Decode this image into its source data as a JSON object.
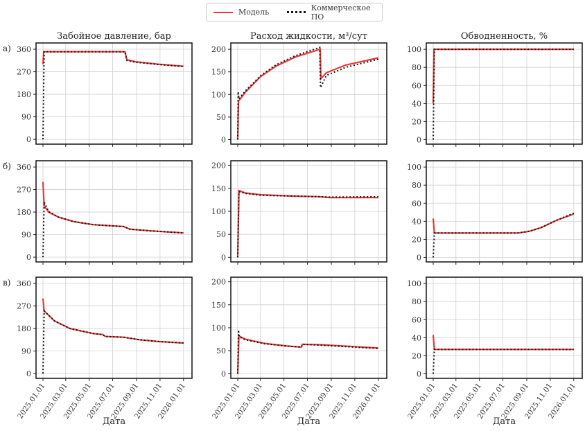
{
  "legend": {
    "model": "Модель",
    "commercial": "Коммерческое ПО"
  },
  "colors": {
    "model": "#e8393a",
    "commercial": "#111111"
  },
  "row_labels": [
    "а)",
    "б)",
    "в)"
  ],
  "xlabel": "Дата",
  "chart_data": {
    "type": "line",
    "layout": "3x3 grid",
    "grid": true,
    "legend_position": "top-center",
    "x_ticks": [
      "2025.01.01",
      "2025.03.01",
      "2025.05.01",
      "2025.07.01",
      "2025.09.01",
      "2025.11.01",
      "2026.01.01"
    ],
    "x_tick_days": [
      0,
      59,
      120,
      181,
      243,
      304,
      365
    ],
    "column_titles": [
      "Забойное давление, бар",
      "Расход жидкости, м³/сут",
      "Обводненность, %"
    ],
    "panels": [
      {
        "row": 0,
        "col": 0,
        "ylim": [
          -19,
          385
        ],
        "yticks": [
          0,
          90,
          180,
          270,
          360
        ],
        "model": [
          [
            0,
            300
          ],
          [
            2,
            350
          ],
          [
            213,
            350
          ],
          [
            218,
            318
          ],
          [
            240,
            310
          ],
          [
            300,
            300
          ],
          [
            365,
            292
          ]
        ],
        "commercial": [
          [
            0,
            0
          ],
          [
            3,
            350
          ],
          [
            213,
            350
          ],
          [
            218,
            315
          ],
          [
            240,
            308
          ],
          [
            300,
            299
          ],
          [
            365,
            291
          ]
        ]
      },
      {
        "row": 0,
        "col": 1,
        "ylim": [
          -10,
          214
        ],
        "yticks": [
          0,
          50,
          100,
          150,
          200
        ],
        "model": [
          [
            0,
            0
          ],
          [
            2,
            85
          ],
          [
            20,
            105
          ],
          [
            60,
            140
          ],
          [
            100,
            163
          ],
          [
            150,
            183
          ],
          [
            214,
            200
          ],
          [
            216,
            135
          ],
          [
            230,
            148
          ],
          [
            280,
            165
          ],
          [
            365,
            181
          ]
        ],
        "commercial": [
          [
            0,
            0
          ],
          [
            1,
            106
          ],
          [
            3,
            90
          ],
          [
            20,
            108
          ],
          [
            60,
            142
          ],
          [
            100,
            166
          ],
          [
            150,
            186
          ],
          [
            213,
            204
          ],
          [
            215,
            115
          ],
          [
            230,
            142
          ],
          [
            280,
            160
          ],
          [
            365,
            178
          ]
        ]
      },
      {
        "row": 0,
        "col": 2,
        "ylim": [
          -5,
          107
        ],
        "yticks": [
          0,
          20,
          40,
          60,
          80,
          100
        ],
        "model": [
          [
            0,
            40
          ],
          [
            2,
            100
          ],
          [
            365,
            100
          ]
        ],
        "commercial": [
          [
            0,
            0
          ],
          [
            3,
            100
          ],
          [
            365,
            100
          ]
        ]
      },
      {
        "row": 1,
        "col": 0,
        "ylim": [
          -19,
          385
        ],
        "yticks": [
          0,
          90,
          180,
          270,
          360
        ],
        "model": [
          [
            0,
            300
          ],
          [
            3,
            205
          ],
          [
            15,
            180
          ],
          [
            40,
            160
          ],
          [
            80,
            142
          ],
          [
            130,
            130
          ],
          [
            210,
            122
          ],
          [
            225,
            112
          ],
          [
            280,
            105
          ],
          [
            365,
            97
          ]
        ],
        "commercial": [
          [
            0,
            0
          ],
          [
            3,
            220
          ],
          [
            15,
            182
          ],
          [
            40,
            160
          ],
          [
            80,
            142
          ],
          [
            130,
            130
          ],
          [
            210,
            122
          ],
          [
            225,
            112
          ],
          [
            280,
            105
          ],
          [
            365,
            97
          ]
        ]
      },
      {
        "row": 1,
        "col": 1,
        "ylim": [
          -10,
          210
        ],
        "yticks": [
          0,
          50,
          100,
          150,
          200
        ],
        "model": [
          [
            0,
            0
          ],
          [
            3,
            145
          ],
          [
            20,
            140
          ],
          [
            60,
            136
          ],
          [
            150,
            133
          ],
          [
            210,
            132
          ],
          [
            240,
            130
          ],
          [
            365,
            130
          ]
        ],
        "commercial": [
          [
            0,
            0
          ],
          [
            3,
            143
          ],
          [
            20,
            139
          ],
          [
            60,
            135
          ],
          [
            150,
            133
          ],
          [
            210,
            132
          ],
          [
            240,
            131
          ],
          [
            365,
            132
          ]
        ]
      },
      {
        "row": 1,
        "col": 2,
        "ylim": [
          -5,
          107
        ],
        "yticks": [
          0,
          20,
          40,
          60,
          80,
          100
        ],
        "model": [
          [
            0,
            43
          ],
          [
            3,
            27
          ],
          [
            220,
            27
          ],
          [
            250,
            29
          ],
          [
            280,
            33
          ],
          [
            320,
            41
          ],
          [
            365,
            48
          ]
        ],
        "commercial": [
          [
            0,
            0
          ],
          [
            3,
            27
          ],
          [
            220,
            27
          ],
          [
            250,
            29
          ],
          [
            280,
            33
          ],
          [
            320,
            41
          ],
          [
            365,
            49
          ]
        ]
      },
      {
        "row": 2,
        "col": 0,
        "ylim": [
          -19,
          385
        ],
        "yticks": [
          0,
          90,
          180,
          270,
          360
        ],
        "model": [
          [
            0,
            300
          ],
          [
            3,
            250
          ],
          [
            30,
            210
          ],
          [
            70,
            180
          ],
          [
            130,
            160
          ],
          [
            155,
            156
          ],
          [
            162,
            148
          ],
          [
            210,
            145
          ],
          [
            250,
            135
          ],
          [
            300,
            128
          ],
          [
            365,
            122
          ]
        ],
        "commercial": [
          [
            0,
            0
          ],
          [
            3,
            250
          ],
          [
            30,
            210
          ],
          [
            70,
            180
          ],
          [
            130,
            160
          ],
          [
            155,
            156
          ],
          [
            162,
            148
          ],
          [
            210,
            145
          ],
          [
            250,
            135
          ],
          [
            300,
            128
          ],
          [
            365,
            122
          ]
        ]
      },
      {
        "row": 2,
        "col": 1,
        "ylim": [
          -10,
          210
        ],
        "yticks": [
          0,
          50,
          100,
          150,
          200
        ],
        "model": [
          [
            0,
            0
          ],
          [
            3,
            82
          ],
          [
            20,
            75
          ],
          [
            70,
            66
          ],
          [
            130,
            60
          ],
          [
            165,
            58
          ],
          [
            168,
            64
          ],
          [
            220,
            63
          ],
          [
            300,
            59
          ],
          [
            365,
            56
          ]
        ],
        "commercial": [
          [
            0,
            0
          ],
          [
            2,
            95
          ],
          [
            4,
            80
          ],
          [
            20,
            74
          ],
          [
            70,
            65
          ],
          [
            130,
            60
          ],
          [
            165,
            58
          ],
          [
            168,
            64
          ],
          [
            220,
            62
          ],
          [
            300,
            58
          ],
          [
            365,
            55
          ]
        ]
      },
      {
        "row": 2,
        "col": 2,
        "ylim": [
          -5,
          107
        ],
        "yticks": [
          0,
          20,
          40,
          60,
          80,
          100
        ],
        "model": [
          [
            0,
            43
          ],
          [
            3,
            27
          ],
          [
            365,
            27
          ]
        ],
        "commercial": [
          [
            0,
            0
          ],
          [
            3,
            27
          ],
          [
            365,
            27
          ]
        ]
      }
    ]
  }
}
